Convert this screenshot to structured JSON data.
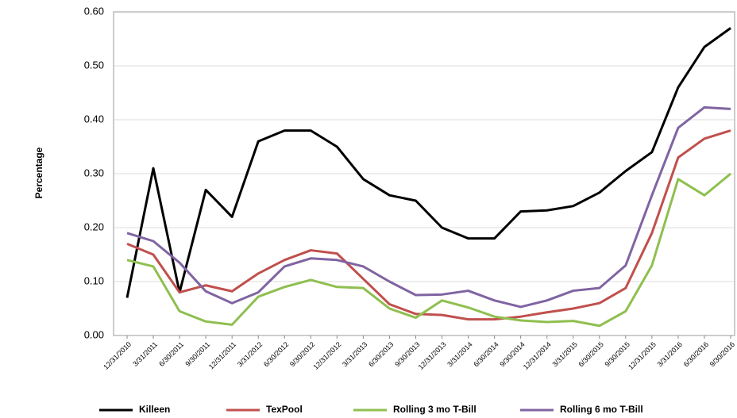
{
  "chart_data": {
    "type": "line",
    "ylabel": "Percentage",
    "categories": [
      "12/31/2010",
      "3/31/2011",
      "6/30/2011",
      "9/30/2011",
      "12/31/2011",
      "3/31/2012",
      "6/30/2012",
      "9/30/2012",
      "12/31/2012",
      "3/31/2013",
      "6/30/2013",
      "9/30/2013",
      "12/31/2013",
      "3/31/2014",
      "6/30/2014",
      "9/30/2014",
      "12/31/2014",
      "3/31/2015",
      "6/30/2015",
      "9/30/2015",
      "12/31/2015",
      "3/31/2016",
      "6/30/2016",
      "9/30/2016"
    ],
    "series": [
      {
        "name": "Killeen",
        "color": "#000000",
        "values": [
          0.07,
          0.31,
          0.08,
          0.27,
          0.22,
          0.36,
          0.38,
          0.38,
          0.35,
          0.29,
          0.26,
          0.25,
          0.2,
          0.18,
          0.18,
          0.23,
          0.232,
          0.24,
          0.265,
          0.305,
          0.34,
          0.46,
          0.535,
          0.57
        ]
      },
      {
        "name": "TexPool",
        "color": "#c0504d",
        "values": [
          0.17,
          0.15,
          0.08,
          0.093,
          0.082,
          0.115,
          0.14,
          0.158,
          0.152,
          0.105,
          0.058,
          0.04,
          0.038,
          0.03,
          0.03,
          0.035,
          0.043,
          0.05,
          0.06,
          0.088,
          0.19,
          0.33,
          0.365,
          0.38
        ]
      },
      {
        "name": "Rolling 3 mo T-Bill",
        "color": "#8fbf4f",
        "values": [
          0.14,
          0.128,
          0.045,
          0.026,
          0.02,
          0.072,
          0.09,
          0.103,
          0.09,
          0.088,
          0.05,
          0.033,
          0.065,
          0.052,
          0.035,
          0.028,
          0.025,
          0.027,
          0.018,
          0.045,
          0.13,
          0.29,
          0.26,
          0.3
        ]
      },
      {
        "name": "Rolling 6 mo T-Bill",
        "color": "#8064a2",
        "values": [
          0.19,
          0.175,
          0.135,
          0.082,
          0.06,
          0.08,
          0.128,
          0.143,
          0.14,
          0.128,
          0.1,
          0.075,
          0.076,
          0.083,
          0.065,
          0.053,
          0.065,
          0.083,
          0.088,
          0.13,
          0.26,
          0.385,
          0.423,
          0.42
        ]
      }
    ],
    "ylim": [
      0,
      0.6
    ],
    "yticks": [
      {
        "value": 0,
        "label": "0.00"
      },
      {
        "value": 0.1,
        "label": "0.10"
      },
      {
        "value": 0.2,
        "label": "0.20"
      },
      {
        "value": 0.3,
        "label": "0.30"
      },
      {
        "value": 0.4,
        "label": "0.40"
      },
      {
        "value": 0.5,
        "label": "0.50"
      },
      {
        "value": 0.6,
        "label": "0.60"
      }
    ],
    "grid": true,
    "legend": "bottom"
  }
}
